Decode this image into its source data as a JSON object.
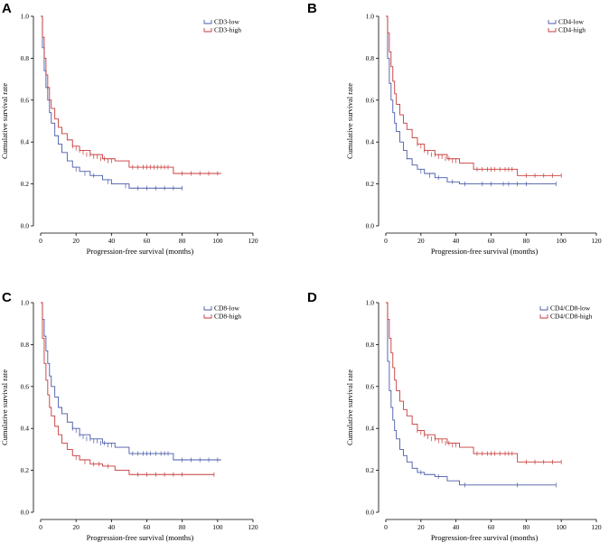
{
  "colors": {
    "low": "#4a5aa8",
    "high": "#c83a3a"
  },
  "chart_data": [
    {
      "type": "line",
      "panel": "A",
      "xlabel": "Progression-free survival (months)",
      "ylabel": "Cumulative survival rate",
      "xlim": [
        0,
        120
      ],
      "ylim": [
        0,
        1.0
      ],
      "xticks": [
        "0",
        "20",
        "40",
        "60",
        "80",
        "100",
        "120"
      ],
      "yticks": [
        "0.0",
        "0.2",
        "0.4",
        "0.6",
        "0.8",
        "1.0"
      ],
      "legend_position": "top-right",
      "series": [
        {
          "name": "CD3-low",
          "color": "#4a5aa8",
          "x": [
            0,
            1,
            2,
            3,
            4,
            5,
            6,
            8,
            10,
            12,
            15,
            18,
            22,
            28,
            35,
            40,
            50,
            80
          ],
          "y": [
            1.0,
            0.85,
            0.74,
            0.66,
            0.6,
            0.54,
            0.49,
            0.43,
            0.39,
            0.35,
            0.31,
            0.28,
            0.26,
            0.24,
            0.22,
            0.2,
            0.18,
            0.18
          ],
          "censored": [
            [
              20,
              0.27
            ],
            [
              25,
              0.25
            ],
            [
              30,
              0.24
            ],
            [
              38,
              0.21
            ],
            [
              48,
              0.19
            ],
            [
              55,
              0.18
            ],
            [
              60,
              0.18
            ],
            [
              65,
              0.18
            ],
            [
              70,
              0.18
            ],
            [
              75,
              0.18
            ],
            [
              80,
              0.18
            ]
          ]
        },
        {
          "name": "CD3-high",
          "color": "#c83a3a",
          "x": [
            0,
            1,
            2,
            3,
            4,
            5,
            6,
            8,
            10,
            12,
            15,
            18,
            22,
            28,
            35,
            42,
            50,
            75,
            102
          ],
          "y": [
            1.0,
            0.9,
            0.8,
            0.72,
            0.66,
            0.6,
            0.56,
            0.51,
            0.47,
            0.44,
            0.41,
            0.38,
            0.36,
            0.34,
            0.32,
            0.31,
            0.28,
            0.25,
            0.25
          ],
          "censored": [
            [
              18,
              0.38
            ],
            [
              20,
              0.37
            ],
            [
              22,
              0.36
            ],
            [
              24,
              0.35
            ],
            [
              26,
              0.34
            ],
            [
              28,
              0.34
            ],
            [
              30,
              0.33
            ],
            [
              32,
              0.33
            ],
            [
              34,
              0.32
            ],
            [
              36,
              0.32
            ],
            [
              38,
              0.31
            ],
            [
              40,
              0.31
            ],
            [
              52,
              0.28
            ],
            [
              55,
              0.28
            ],
            [
              58,
              0.28
            ],
            [
              60,
              0.28
            ],
            [
              62,
              0.28
            ],
            [
              64,
              0.28
            ],
            [
              66,
              0.28
            ],
            [
              68,
              0.28
            ],
            [
              70,
              0.28
            ],
            [
              72,
              0.28
            ],
            [
              80,
              0.25
            ],
            [
              85,
              0.25
            ],
            [
              90,
              0.25
            ],
            [
              95,
              0.25
            ],
            [
              100,
              0.25
            ]
          ]
        }
      ]
    },
    {
      "type": "line",
      "panel": "B",
      "xlabel": "Progression-free survival (months)",
      "ylabel": "Cumulative survival rate",
      "xlim": [
        0,
        120
      ],
      "ylim": [
        0,
        1.0
      ],
      "xticks": [
        "0",
        "20",
        "40",
        "60",
        "80",
        "100",
        "120"
      ],
      "yticks": [
        "0.0",
        "0.2",
        "0.4",
        "0.6",
        "0.8",
        "1.0"
      ],
      "legend_position": "top-right",
      "series": [
        {
          "name": "CD4-low",
          "color": "#4a5aa8",
          "x": [
            0,
            1,
            2,
            3,
            4,
            5,
            6,
            8,
            10,
            12,
            15,
            18,
            22,
            28,
            35,
            42,
            97
          ],
          "y": [
            1.0,
            0.8,
            0.68,
            0.6,
            0.54,
            0.49,
            0.45,
            0.4,
            0.36,
            0.32,
            0.29,
            0.27,
            0.25,
            0.23,
            0.21,
            0.2,
            0.2
          ],
          "censored": [
            [
              20,
              0.26
            ],
            [
              25,
              0.24
            ],
            [
              30,
              0.23
            ],
            [
              38,
              0.21
            ],
            [
              45,
              0.2
            ],
            [
              55,
              0.2
            ],
            [
              60,
              0.2
            ],
            [
              67,
              0.2
            ],
            [
              70,
              0.2
            ],
            [
              75,
              0.2
            ],
            [
              80,
              0.2
            ],
            [
              97,
              0.2
            ]
          ]
        },
        {
          "name": "CD4-high",
          "color": "#c83a3a",
          "x": [
            0,
            1,
            2,
            3,
            4,
            5,
            6,
            8,
            10,
            12,
            15,
            18,
            22,
            28,
            35,
            42,
            50,
            75,
            100
          ],
          "y": [
            1.0,
            0.92,
            0.83,
            0.76,
            0.69,
            0.63,
            0.58,
            0.53,
            0.49,
            0.46,
            0.42,
            0.39,
            0.36,
            0.34,
            0.32,
            0.3,
            0.27,
            0.24,
            0.24
          ],
          "censored": [
            [
              18,
              0.39
            ],
            [
              20,
              0.38
            ],
            [
              22,
              0.36
            ],
            [
              24,
              0.35
            ],
            [
              26,
              0.34
            ],
            [
              28,
              0.34
            ],
            [
              30,
              0.33
            ],
            [
              32,
              0.33
            ],
            [
              34,
              0.32
            ],
            [
              36,
              0.32
            ],
            [
              38,
              0.31
            ],
            [
              40,
              0.31
            ],
            [
              52,
              0.27
            ],
            [
              55,
              0.27
            ],
            [
              58,
              0.27
            ],
            [
              60,
              0.27
            ],
            [
              62,
              0.27
            ],
            [
              65,
              0.27
            ],
            [
              68,
              0.27
            ],
            [
              70,
              0.27
            ],
            [
              72,
              0.27
            ],
            [
              80,
              0.24
            ],
            [
              85,
              0.24
            ],
            [
              90,
              0.24
            ],
            [
              95,
              0.24
            ],
            [
              100,
              0.24
            ]
          ]
        }
      ]
    },
    {
      "type": "line",
      "panel": "C",
      "xlabel": "Progression-free survival (months)",
      "ylabel": "Cumulative survival rate",
      "xlim": [
        0,
        120
      ],
      "ylim": [
        0,
        1.0
      ],
      "xticks": [
        "0",
        "20",
        "40",
        "60",
        "80",
        "100",
        "120"
      ],
      "yticks": [
        "0.0",
        "0.2",
        "0.4",
        "0.6",
        "0.8",
        "1.0"
      ],
      "legend_position": "top-right",
      "series": [
        {
          "name": "CD8-low",
          "color": "#4a5aa8",
          "x": [
            0,
            1,
            2,
            3,
            4,
            5,
            6,
            8,
            10,
            12,
            15,
            18,
            22,
            28,
            35,
            42,
            50,
            75,
            102
          ],
          "y": [
            1.0,
            0.92,
            0.84,
            0.77,
            0.71,
            0.65,
            0.6,
            0.55,
            0.5,
            0.47,
            0.43,
            0.4,
            0.37,
            0.35,
            0.33,
            0.31,
            0.28,
            0.25,
            0.25
          ],
          "censored": [
            [
              18,
              0.4
            ],
            [
              20,
              0.39
            ],
            [
              22,
              0.37
            ],
            [
              24,
              0.36
            ],
            [
              26,
              0.35
            ],
            [
              28,
              0.35
            ],
            [
              30,
              0.34
            ],
            [
              32,
              0.34
            ],
            [
              34,
              0.33
            ],
            [
              36,
              0.33
            ],
            [
              38,
              0.32
            ],
            [
              40,
              0.32
            ],
            [
              52,
              0.28
            ],
            [
              55,
              0.28
            ],
            [
              58,
              0.28
            ],
            [
              60,
              0.28
            ],
            [
              62,
              0.28
            ],
            [
              65,
              0.28
            ],
            [
              68,
              0.28
            ],
            [
              70,
              0.28
            ],
            [
              72,
              0.28
            ],
            [
              80,
              0.25
            ],
            [
              85,
              0.25
            ],
            [
              90,
              0.25
            ],
            [
              95,
              0.25
            ],
            [
              100,
              0.25
            ]
          ]
        },
        {
          "name": "CD8-high",
          "color": "#c83a3a",
          "x": [
            0,
            1,
            2,
            3,
            4,
            5,
            6,
            8,
            10,
            12,
            15,
            18,
            22,
            28,
            35,
            42,
            50,
            98
          ],
          "y": [
            1.0,
            0.83,
            0.71,
            0.63,
            0.56,
            0.5,
            0.46,
            0.41,
            0.37,
            0.33,
            0.3,
            0.27,
            0.25,
            0.23,
            0.22,
            0.2,
            0.18,
            0.18
          ],
          "censored": [
            [
              20,
              0.26
            ],
            [
              25,
              0.24
            ],
            [
              30,
              0.23
            ],
            [
              33,
              0.23
            ],
            [
              38,
              0.22
            ],
            [
              55,
              0.18
            ],
            [
              60,
              0.18
            ],
            [
              65,
              0.18
            ],
            [
              70,
              0.18
            ],
            [
              75,
              0.18
            ],
            [
              80,
              0.18
            ],
            [
              98,
              0.18
            ]
          ]
        }
      ]
    },
    {
      "type": "line",
      "panel": "D",
      "xlabel": "Progression-free survival (months)",
      "ylabel": "Cumulative survival rate",
      "xlim": [
        0,
        120
      ],
      "ylim": [
        0,
        1.0
      ],
      "xticks": [
        "0",
        "20",
        "40",
        "60",
        "80",
        "100",
        "120"
      ],
      "yticks": [
        "0.0",
        "0.2",
        "0.4",
        "0.6",
        "0.8",
        "1.0"
      ],
      "legend_position": "top-right",
      "series": [
        {
          "name": "CD4/CD8-low",
          "color": "#4a5aa8",
          "x": [
            0,
            1,
            2,
            3,
            4,
            5,
            6,
            8,
            10,
            12,
            15,
            18,
            22,
            28,
            35,
            42,
            97
          ],
          "y": [
            1.0,
            0.72,
            0.58,
            0.5,
            0.44,
            0.39,
            0.35,
            0.3,
            0.27,
            0.24,
            0.21,
            0.19,
            0.18,
            0.17,
            0.15,
            0.13,
            0.13
          ],
          "censored": [
            [
              20,
              0.19
            ],
            [
              30,
              0.17
            ],
            [
              45,
              0.13
            ],
            [
              75,
              0.13
            ],
            [
              97,
              0.13
            ]
          ]
        },
        {
          "name": "CD4/CD8-high",
          "color": "#c83a3a",
          "x": [
            0,
            1,
            2,
            3,
            4,
            5,
            6,
            8,
            10,
            12,
            15,
            18,
            22,
            28,
            35,
            42,
            50,
            75,
            100
          ],
          "y": [
            1.0,
            0.92,
            0.83,
            0.76,
            0.69,
            0.63,
            0.58,
            0.53,
            0.49,
            0.46,
            0.42,
            0.39,
            0.37,
            0.35,
            0.33,
            0.31,
            0.28,
            0.24,
            0.24
          ],
          "censored": [
            [
              18,
              0.39
            ],
            [
              20,
              0.38
            ],
            [
              22,
              0.37
            ],
            [
              24,
              0.36
            ],
            [
              26,
              0.35
            ],
            [
              28,
              0.35
            ],
            [
              30,
              0.34
            ],
            [
              32,
              0.34
            ],
            [
              34,
              0.33
            ],
            [
              36,
              0.33
            ],
            [
              38,
              0.32
            ],
            [
              40,
              0.32
            ],
            [
              52,
              0.28
            ],
            [
              55,
              0.28
            ],
            [
              58,
              0.28
            ],
            [
              60,
              0.28
            ],
            [
              62,
              0.28
            ],
            [
              65,
              0.28
            ],
            [
              68,
              0.28
            ],
            [
              70,
              0.28
            ],
            [
              72,
              0.28
            ],
            [
              80,
              0.24
            ],
            [
              85,
              0.24
            ],
            [
              90,
              0.24
            ],
            [
              95,
              0.24
            ],
            [
              100,
              0.24
            ]
          ]
        }
      ]
    }
  ]
}
